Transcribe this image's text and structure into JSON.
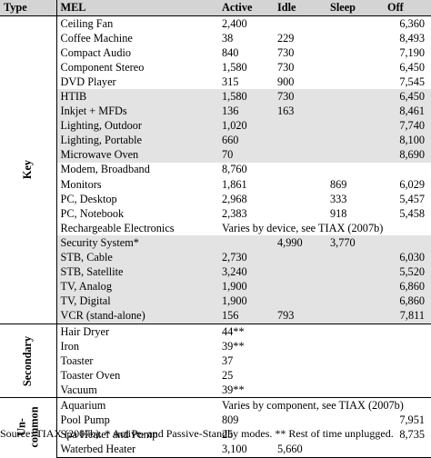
{
  "headers": {
    "type": "Type",
    "mel": "MEL",
    "active": "Active",
    "idle": "Idle",
    "sleep": "Sleep",
    "off": "Off"
  },
  "groups": [
    {
      "label": "Key",
      "rows": [
        {
          "mel": "Ceiling Fan",
          "active": "2,400",
          "idle": "",
          "sleep": "",
          "off": "6,360",
          "shaded": false
        },
        {
          "mel": "Coffee Machine",
          "active": "38",
          "idle": "229",
          "sleep": "",
          "off": "8,493",
          "shaded": false
        },
        {
          "mel": "Compact Audio",
          "active": "840",
          "idle": "730",
          "sleep": "",
          "off": "7,190",
          "shaded": false
        },
        {
          "mel": "Component Stereo",
          "active": "1,580",
          "idle": "730",
          "sleep": "",
          "off": "6,450",
          "shaded": false
        },
        {
          "mel": "DVD Player",
          "active": "315",
          "idle": "900",
          "sleep": "",
          "off": "7,545",
          "shaded": false
        },
        {
          "mel": "HTIB",
          "active": "1,580",
          "idle": "730",
          "sleep": "",
          "off": "6,450",
          "shaded": true
        },
        {
          "mel": "Inkjet + MFDs",
          "active": "136",
          "idle": "163",
          "sleep": "",
          "off": "8,461",
          "shaded": true
        },
        {
          "mel": "Lighting, Outdoor",
          "active": "1,020",
          "idle": "",
          "sleep": "",
          "off": "7,740",
          "shaded": true
        },
        {
          "mel": "Lighting, Portable",
          "active": "660",
          "idle": "",
          "sleep": "",
          "off": "8,100",
          "shaded": true
        },
        {
          "mel": "Microwave Oven",
          "active": "70",
          "idle": "",
          "sleep": "",
          "off": "8,690",
          "shaded": true
        },
        {
          "mel": "Modem, Broadband",
          "active": "8,760",
          "idle": "",
          "sleep": "",
          "off": "",
          "shaded": false
        },
        {
          "mel": "Monitors",
          "active": "1,861",
          "idle": "",
          "sleep": "869",
          "off": "6,029",
          "shaded": false
        },
        {
          "mel": "PC, Desktop",
          "active": "2,968",
          "idle": "",
          "sleep": "333",
          "off": "5,457",
          "shaded": false
        },
        {
          "mel": "PC, Notebook",
          "active": "2,383",
          "idle": "",
          "sleep": "918",
          "off": "5,458",
          "shaded": false
        },
        {
          "mel": "Rechargeable Electronics",
          "span": "Varies by device, see TIAX (2007b)",
          "shaded": false
        },
        {
          "mel": "Security System*",
          "active": "",
          "idle": "4,990",
          "sleep": "3,770",
          "off": "",
          "shaded": true
        },
        {
          "mel": "STB, Cable",
          "active": "2,730",
          "idle": "",
          "sleep": "",
          "off": "6,030",
          "shaded": true
        },
        {
          "mel": "STB, Satellite",
          "active": "3,240",
          "idle": "",
          "sleep": "",
          "off": "5,520",
          "shaded": true
        },
        {
          "mel": "TV, Analog",
          "active": "1,900",
          "idle": "",
          "sleep": "",
          "off": "6,860",
          "shaded": true
        },
        {
          "mel": "TV, Digital",
          "active": "1,900",
          "idle": "",
          "sleep": "",
          "off": "6,860",
          "shaded": true
        },
        {
          "mel": "VCR (stand-alone)",
          "active": "156",
          "idle": "793",
          "sleep": "",
          "off": "7,811",
          "shaded": true
        }
      ]
    },
    {
      "label": "Secondary",
      "rows": [
        {
          "mel": "Hair Dryer",
          "active": "44**",
          "idle": "",
          "sleep": "",
          "off": "",
          "shaded": false
        },
        {
          "mel": "Iron",
          "active": "39**",
          "idle": "",
          "sleep": "",
          "off": "",
          "shaded": false
        },
        {
          "mel": "Toaster",
          "active": "37",
          "idle": "",
          "sleep": "",
          "off": "",
          "shaded": false
        },
        {
          "mel": "Toaster Oven",
          "active": "25",
          "idle": "",
          "sleep": "",
          "off": "",
          "shaded": false
        },
        {
          "mel": "Vacuum",
          "active": "39**",
          "idle": "",
          "sleep": "",
          "off": "",
          "shaded": false
        }
      ]
    },
    {
      "label": "Un-\ncommon",
      "label_lines": [
        "Un-",
        "common"
      ],
      "rows": [
        {
          "mel": "Aquarium",
          "span": "Varies by component, see TIAX (2007b)",
          "shaded": false
        },
        {
          "mel": "Pool Pump",
          "active": "809",
          "idle": "",
          "sleep": "",
          "off": "7,951",
          "shaded": false
        },
        {
          "mel": "Spa Heater and Pump",
          "active": "25",
          "idle": "",
          "sleep": "",
          "off": "8,735",
          "shaded": false
        },
        {
          "mel": "Waterbed Heater",
          "active": "3,100",
          "idle": "5,660",
          "sleep": "",
          "off": "",
          "shaded": false
        }
      ]
    }
  ],
  "footnote": "Source: TIAX (2007b). * Active- and Passive-Standby modes. ** Rest of time unplugged."
}
